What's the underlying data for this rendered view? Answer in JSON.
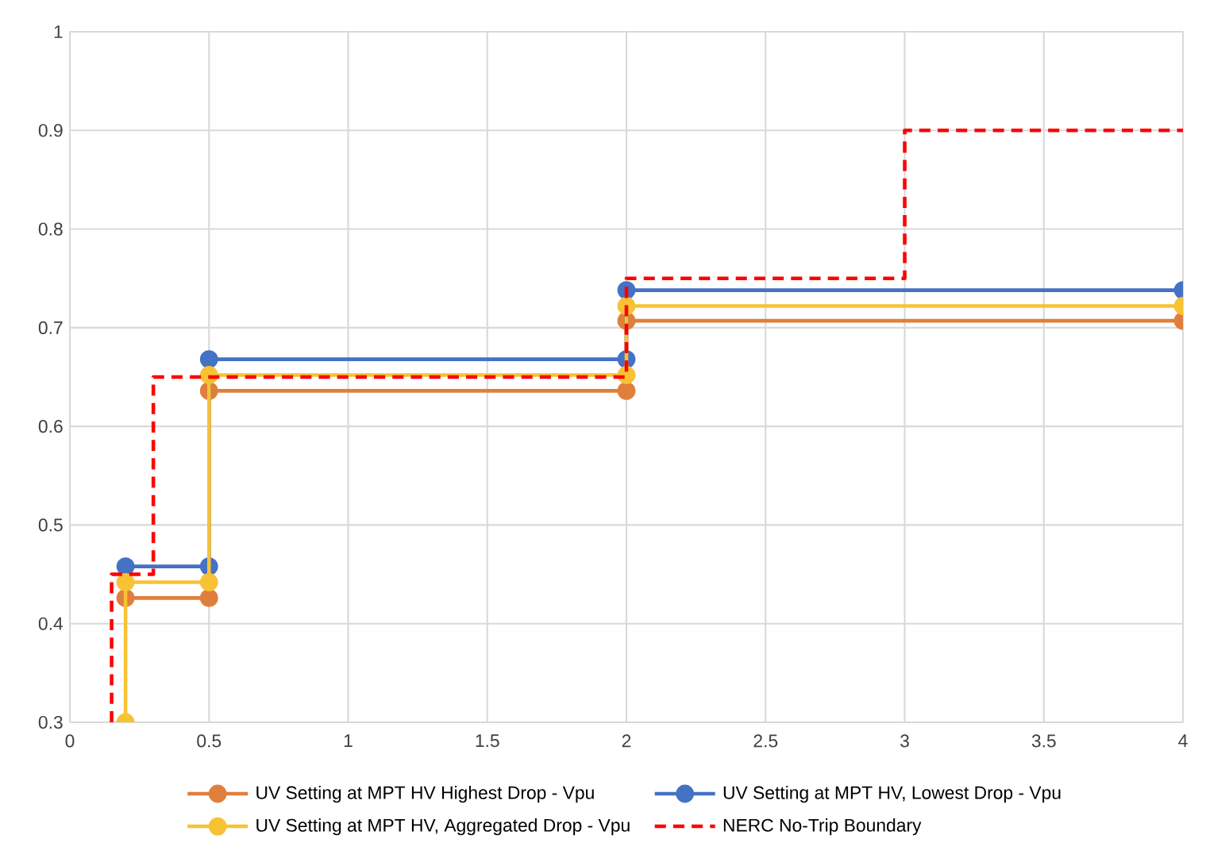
{
  "chart_data": {
    "type": "line",
    "xlim": [
      0,
      4
    ],
    "ylim": [
      0.3,
      1
    ],
    "xticks": [
      0,
      0.5,
      1,
      1.5,
      2,
      2.5,
      3,
      3.5,
      4
    ],
    "yticks": [
      0.3,
      0.4,
      0.5,
      0.6,
      0.7,
      0.8,
      0.9,
      1
    ],
    "grid": true,
    "legend": "bottom",
    "series": [
      {
        "name": "UV Setting at MPT HV Highest Drop - Vpu",
        "color": "#e07f3c",
        "marker": "circle",
        "line_style": "solid",
        "x": [
          0.2,
          0.5,
          0.5,
          2,
          2,
          4
        ],
        "values": [
          0.426,
          0.426,
          0.636,
          0.636,
          0.707,
          0.707
        ]
      },
      {
        "name": "UV Setting at MPT HV, Lowest Drop - Vpu",
        "color": "#4472c4",
        "marker": "circle",
        "line_style": "solid",
        "x": [
          0.2,
          0.5,
          0.5,
          2,
          2,
          4
        ],
        "values": [
          0.458,
          0.458,
          0.668,
          0.668,
          0.738,
          0.738
        ]
      },
      {
        "name": "UV Setting at MPT HV, Aggregated Drop - Vpu",
        "color": "#f7c234",
        "marker": "circle",
        "line_style": "solid",
        "x": [
          0.2,
          0.2,
          0.5,
          0.5,
          2,
          2,
          4
        ],
        "values": [
          0.3,
          0.442,
          0.442,
          0.652,
          0.652,
          0.722,
          0.722
        ]
      },
      {
        "name": "NERC No-Trip Boundary",
        "color": "#ff0000",
        "marker": "none",
        "line_style": "dashed",
        "x": [
          0.15,
          0.15,
          0.3,
          0.3,
          2,
          2,
          3,
          3,
          4
        ],
        "values": [
          0.3,
          0.45,
          0.45,
          0.65,
          0.65,
          0.75,
          0.75,
          0.9,
          0.9
        ]
      }
    ]
  }
}
